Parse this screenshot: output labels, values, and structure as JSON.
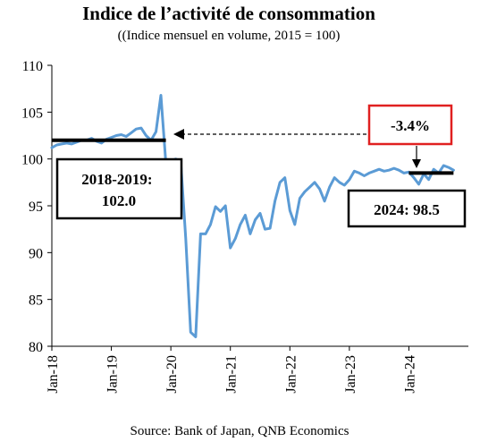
{
  "chart_data": {
    "type": "line",
    "title": "Indice de l’activité de consommation",
    "subtitle": "((Indice mensuel en volume, 2015 = 100)",
    "source": "Source: Bank of Japan, QNB Economics",
    "ylim": [
      80,
      110
    ],
    "yticks": [
      "80",
      "85",
      "90",
      "95",
      "100",
      "105",
      "110"
    ],
    "xticks": [
      "Jan-18",
      "Jan-19",
      "Jan-20",
      "Jan-21",
      "Jan-22",
      "Jan-23",
      "Jan-24"
    ],
    "x_start": "2018-01",
    "series": [
      {
        "color": "#5b9bd5",
        "values": [
          101.2,
          101.5,
          101.6,
          101.7,
          101.6,
          101.8,
          102.0,
          102.0,
          102.2,
          101.9,
          101.7,
          102.1,
          102.3,
          102.5,
          102.6,
          102.4,
          102.8,
          103.2,
          103.3,
          102.5,
          102.0,
          102.9,
          106.8,
          99.5,
          99.8,
          100.0,
          99.7,
          91.5,
          81.5,
          81.0,
          92.0,
          92.0,
          93.0,
          94.9,
          94.4,
          95.0,
          90.5,
          91.5,
          93.0,
          94.0,
          92.0,
          93.5,
          94.2,
          92.5,
          92.6,
          95.5,
          97.5,
          98.0,
          94.5,
          93.0,
          95.8,
          96.5,
          97.0,
          97.5,
          96.8,
          95.5,
          97.0,
          98.0,
          97.5,
          97.2,
          97.8,
          98.7,
          98.5,
          98.2,
          98.5,
          98.7,
          98.9,
          98.7,
          98.8,
          99.0,
          98.8,
          98.5,
          98.6,
          98.0,
          97.3,
          98.4,
          97.8,
          98.9,
          98.5,
          99.3,
          99.1,
          98.8
        ]
      }
    ],
    "reference_lines": [
      {
        "label": "2018-2019: 102.0",
        "value": 102.0,
        "from": "2018-01",
        "to": "2019-12"
      },
      {
        "label": "2024: 98.5",
        "value": 98.5,
        "from": "2024-01",
        "to": "2024-10"
      }
    ],
    "annotation": {
      "label": "-3.4%"
    },
    "grid": false,
    "colors": {
      "line": "#5b9bd5",
      "annotation_border": "#e02020",
      "ref_line": "#000000"
    }
  }
}
